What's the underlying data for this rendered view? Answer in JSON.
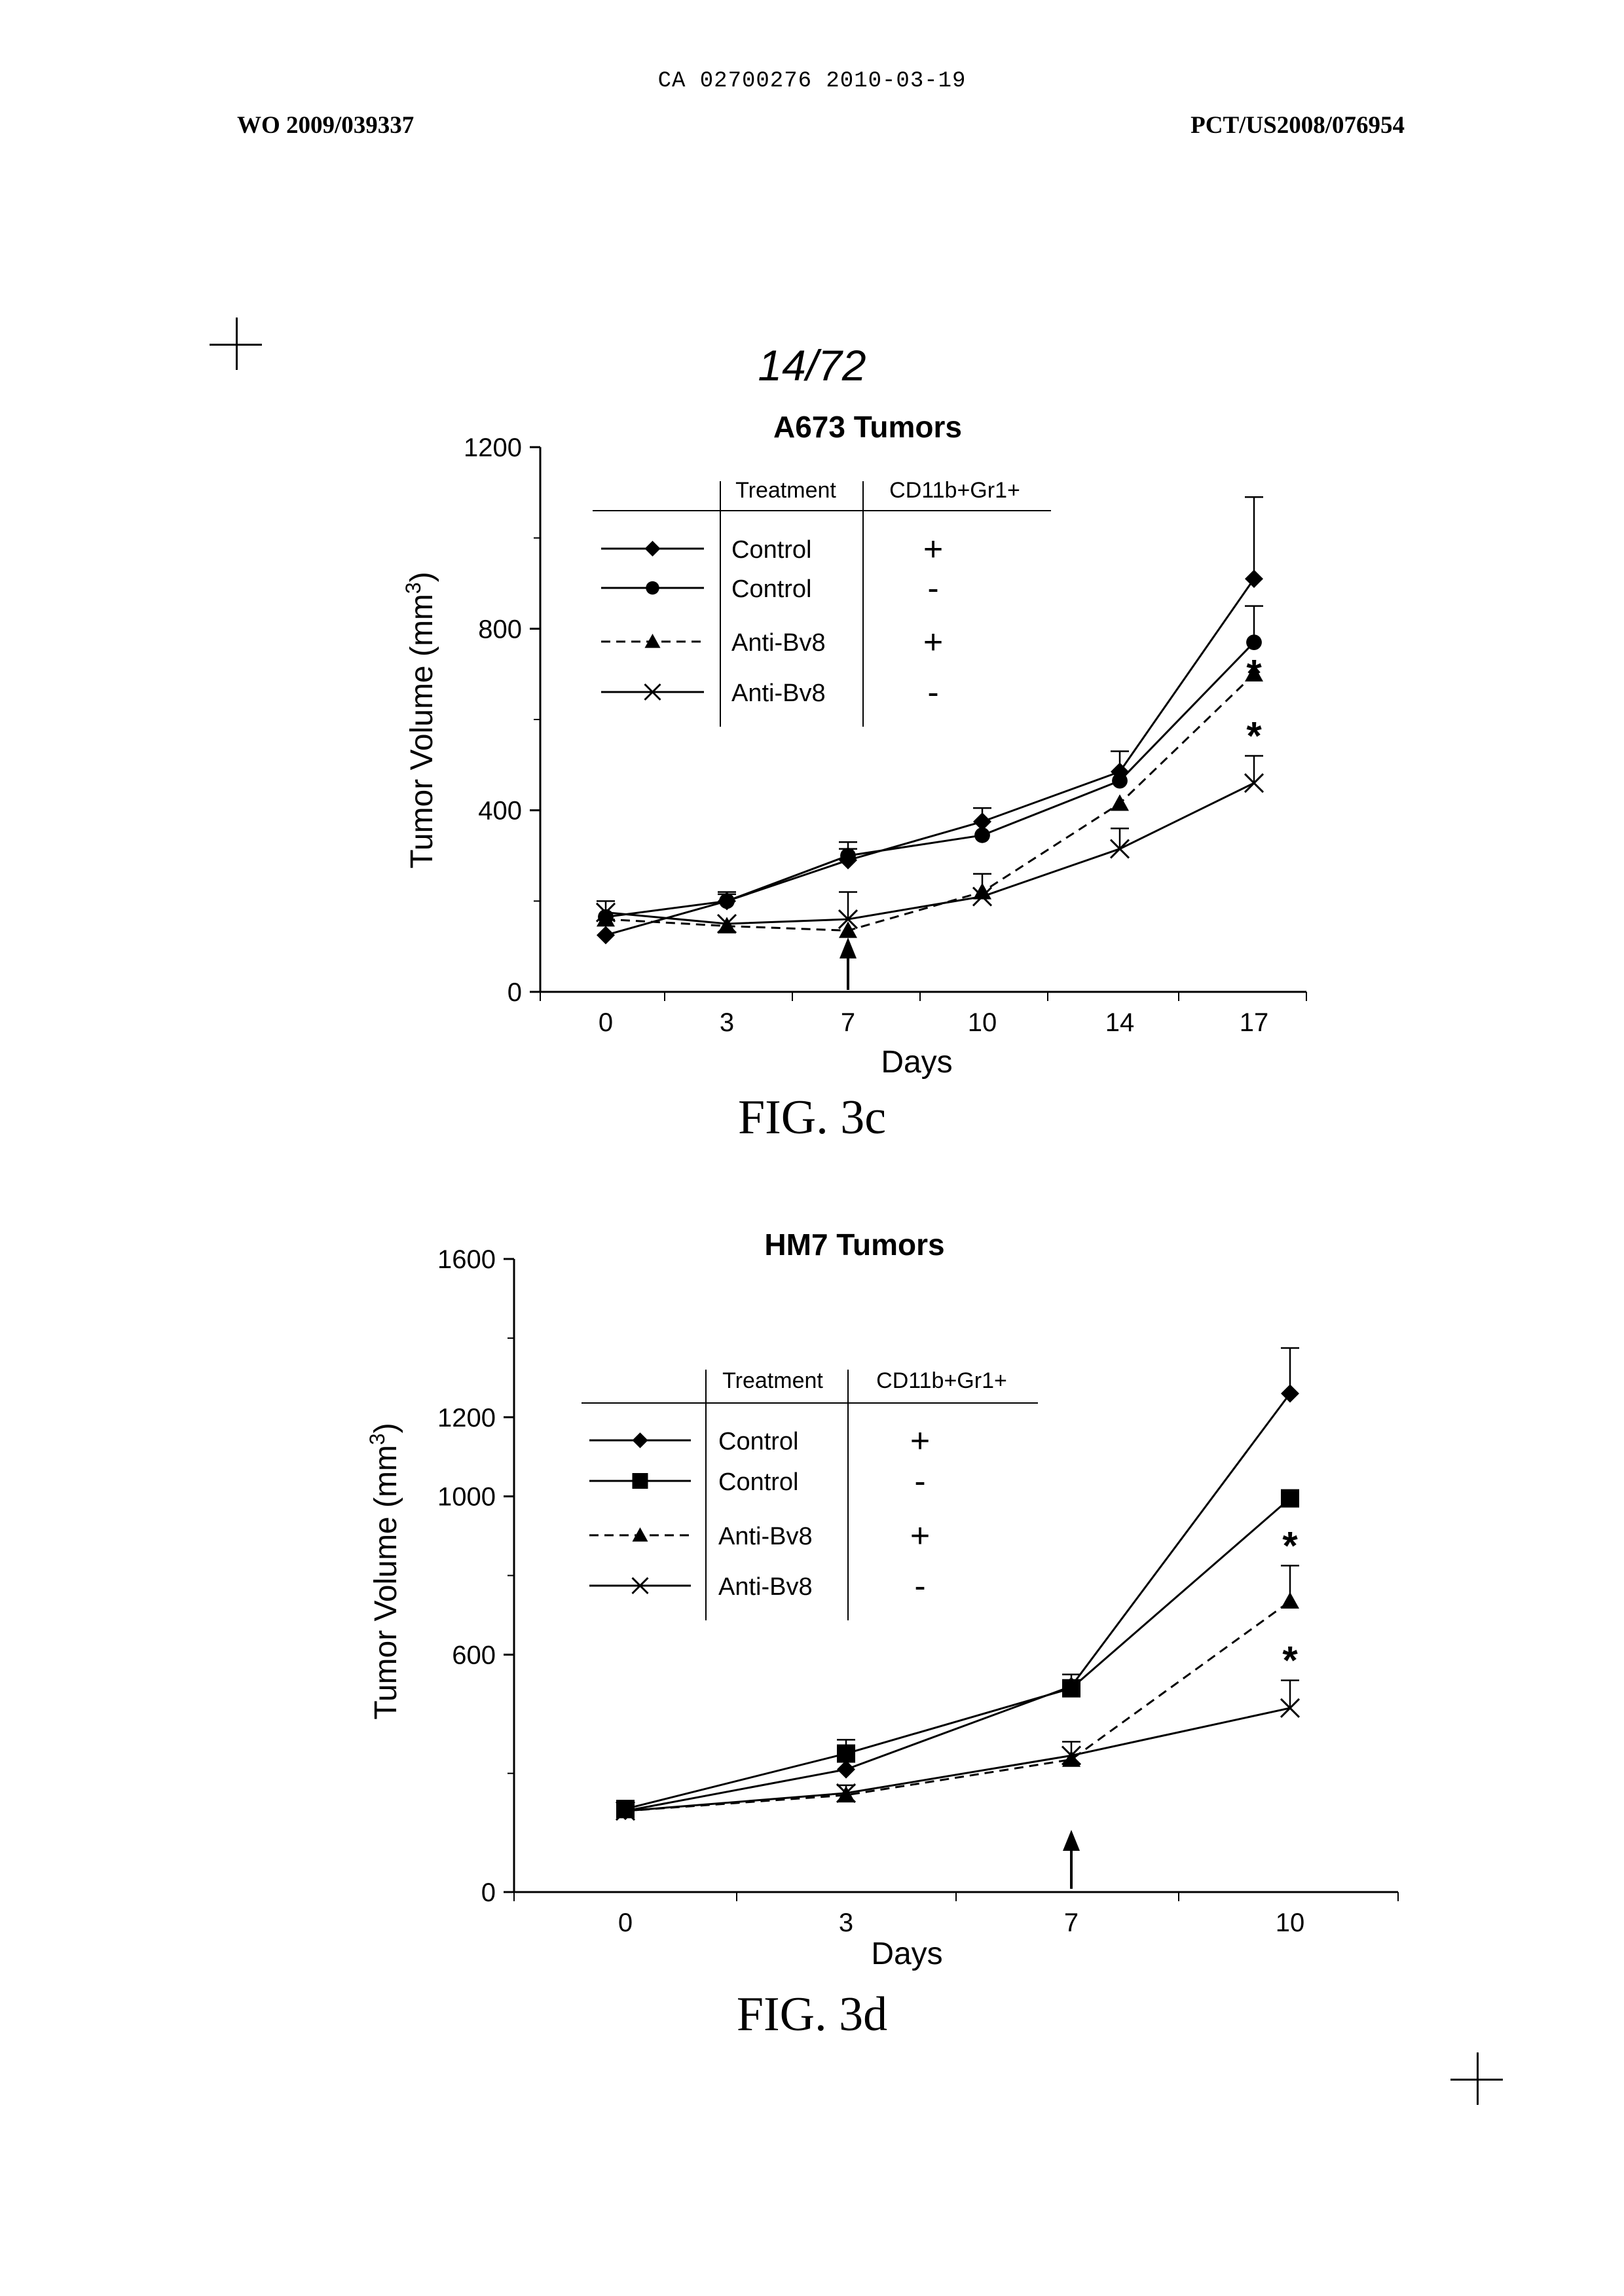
{
  "header": {
    "center": "CA 02700276 2010-03-19",
    "left": "WO 2009/039337",
    "right": "PCT/US2008/076954"
  },
  "page_number": "14/72",
  "legend_header": {
    "treatment": "Treatment",
    "marker": "CD11b+Gr1+"
  },
  "chart_data": [
    {
      "type": "line",
      "title": "A673 Tumors",
      "caption": "FIG. 3c",
      "xlabel": "Days",
      "ylabel": "Tumor Volume (mm",
      "ylabel_sup": "3",
      "ylabel_end": ")",
      "x": [
        0,
        3,
        7,
        10,
        14,
        17
      ],
      "x_ticks": [
        "0",
        "3",
        "7",
        "10",
        "14",
        "17"
      ],
      "ylim": [
        0,
        1200
      ],
      "y_ticks": [
        "0",
        "400",
        "800",
        "1200"
      ],
      "arrow_day": 7,
      "series": [
        {
          "name": "Control",
          "marker_label": "+",
          "symbol": "diamond",
          "dash": false,
          "values": [
            125,
            200,
            290,
            375,
            485,
            910
          ],
          "err": [
            0,
            15,
            25,
            30,
            45,
            180
          ],
          "star": false
        },
        {
          "name": "Control",
          "marker_label": "-",
          "symbol": "circle",
          "dash": false,
          "values": [
            165,
            200,
            300,
            345,
            465,
            770
          ],
          "err": [
            0,
            20,
            30,
            0,
            0,
            80
          ],
          "star": false
        },
        {
          "name": "Anti-Bv8",
          "marker_label": "+",
          "symbol": "triangle",
          "dash": true,
          "values": [
            160,
            145,
            135,
            220,
            415,
            700
          ],
          "err": [
            0,
            0,
            0,
            40,
            0,
            0
          ],
          "star": true
        },
        {
          "name": "Anti-Bv8",
          "marker_label": "-",
          "symbol": "x",
          "dash": false,
          "values": [
            175,
            150,
            160,
            210,
            315,
            460
          ],
          "err": [
            25,
            0,
            60,
            0,
            45,
            60
          ],
          "star": true
        }
      ]
    },
    {
      "type": "line",
      "title": "HM7 Tumors",
      "caption": "FIG. 3d",
      "xlabel": "Days",
      "ylabel": "Tumor Volume (mm",
      "ylabel_sup": "3",
      "ylabel_end": ")",
      "x": [
        0,
        3,
        7,
        10
      ],
      "x_ticks": [
        "0",
        "3",
        "7",
        "10"
      ],
      "ylim": [
        0,
        1600
      ],
      "y_ticks": [
        "0",
        "600",
        "1000",
        "1200",
        "1600"
      ],
      "arrow_day": 7,
      "series": [
        {
          "name": "Control",
          "marker_label": "+",
          "symbol": "diamond",
          "dash": false,
          "values": [
            205,
            310,
            520,
            1260
          ],
          "err": [
            0,
            0,
            30,
            115
          ],
          "star": false
        },
        {
          "name": "Control",
          "marker_label": "-",
          "symbol": "square",
          "dash": false,
          "values": [
            210,
            350,
            515,
            995
          ],
          "err": [
            0,
            35,
            0,
            0
          ],
          "star": false
        },
        {
          "name": "Anti-Bv8",
          "marker_label": "+",
          "symbol": "triangle",
          "dash": true,
          "values": [
            205,
            245,
            335,
            735
          ],
          "err": [
            0,
            0,
            0,
            90
          ],
          "star": true
        },
        {
          "name": "Anti-Bv8",
          "marker_label": "-",
          "symbol": "x",
          "dash": false,
          "values": [
            205,
            250,
            345,
            465
          ],
          "err": [
            0,
            20,
            35,
            70
          ],
          "star": true
        }
      ]
    }
  ]
}
